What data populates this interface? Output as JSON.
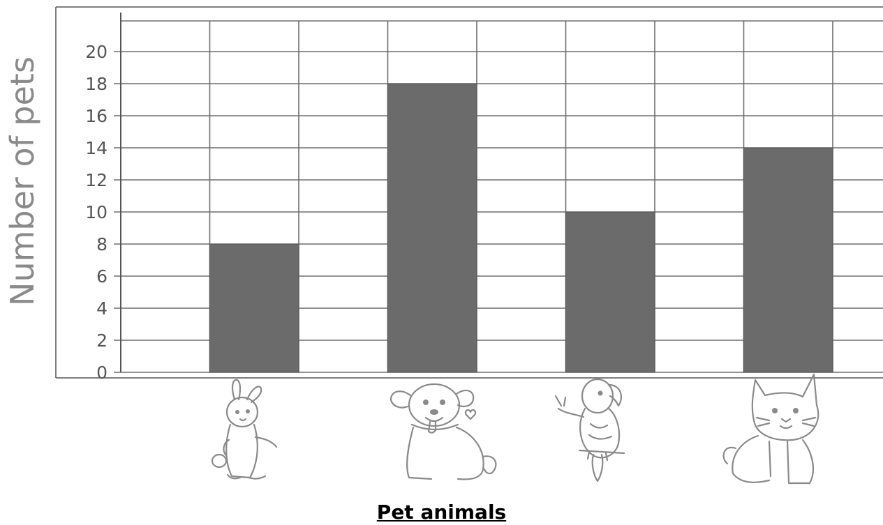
{
  "chart_data": {
    "type": "bar",
    "categories": [
      "rabbit",
      "dog",
      "parrot",
      "cat"
    ],
    "values": [
      8,
      18,
      10,
      14
    ],
    "title": "",
    "xlabel": "Pet animals",
    "ylabel": "Number of pets",
    "ylim": [
      0,
      22
    ],
    "yticks": [
      "0",
      "2",
      "4",
      "6",
      "8",
      "10",
      "12",
      "14",
      "16",
      "18",
      "20"
    ],
    "grid": true,
    "legend": "none",
    "bar_color": "#6b6b6b",
    "grid_color": "#6e6e6e"
  },
  "icons": [
    "rabbit-icon",
    "dog-icon",
    "parrot-icon",
    "cat-icon"
  ]
}
